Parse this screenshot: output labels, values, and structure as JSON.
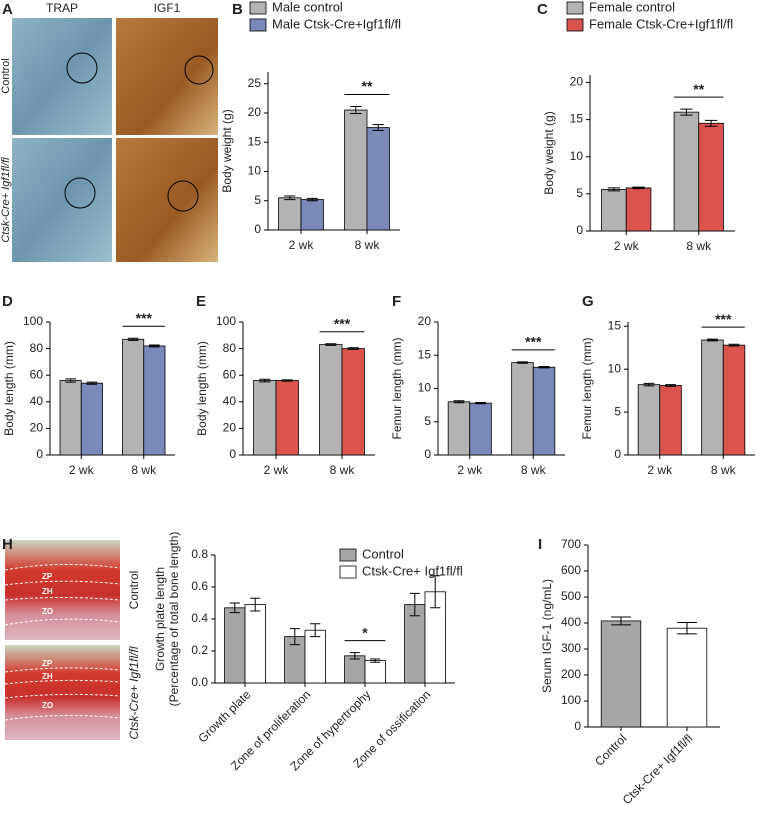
{
  "image_panels": [
    {
      "panel": "A",
      "column_labels": [
        "TRAP",
        "IGF1"
      ],
      "row_labels": [
        "Control",
        "Ctsk-Cre+ Igf1fl/fl"
      ]
    },
    {
      "panel": "H",
      "row_labels": [
        "Control",
        "Ctsk-Cre+ Igf1fl/fl"
      ],
      "zone_labels": [
        [
          "ZP",
          "ZH",
          "ZO"
        ],
        [
          "ZP",
          "ZH",
          "ZO"
        ]
      ]
    }
  ],
  "chart_data": [
    {
      "type": "bar",
      "panel": "B",
      "ylabel": [
        "Body weight (g)"
      ],
      "categories": [
        "2 wk",
        "8 wk"
      ],
      "series": [
        {
          "name": "Male control",
          "color": "#b3b3b3",
          "values": [
            5.5,
            20.5
          ],
          "errors": [
            0.3,
            0.6
          ]
        },
        {
          "name": "Male Ctsk-Cre+Igf1fl/fl",
          "color": "#7b89b8",
          "values": [
            5.2,
            17.5
          ],
          "errors": [
            0.2,
            0.5
          ]
        }
      ],
      "ylim": [
        0,
        27
      ],
      "yticks": [
        0,
        5,
        10,
        15,
        20,
        25
      ],
      "annotations": [
        {
          "text": "**",
          "x": "8 wk"
        }
      ]
    },
    {
      "type": "bar",
      "panel": "C",
      "ylabel": [
        "Body weight (g)"
      ],
      "categories": [
        "2 wk",
        "8 wk"
      ],
      "series": [
        {
          "name": "Female control",
          "color": "#b3b3b3",
          "values": [
            5.6,
            16.0
          ],
          "errors": [
            0.2,
            0.4
          ]
        },
        {
          "name": "Female Ctsk-Cre+Igf1fl/fl",
          "color": "#d9534f",
          "values": [
            5.8,
            14.5
          ],
          "errors": [
            0.1,
            0.4
          ]
        }
      ],
      "ylim": [
        0,
        21
      ],
      "yticks": [
        0,
        5,
        10,
        15,
        20
      ],
      "annotations": [
        {
          "text": "**",
          "x": "8 wk"
        }
      ]
    },
    {
      "type": "bar",
      "panel": "D",
      "ylabel": [
        "Body length (mm)"
      ],
      "categories": [
        "2 wk",
        "8 wk"
      ],
      "series": [
        {
          "color": "#b3b3b3",
          "values": [
            56,
            87
          ],
          "errors": [
            1.2,
            0.8
          ]
        },
        {
          "color": "#7b89b8",
          "values": [
            54,
            82
          ],
          "errors": [
            0.8,
            0.7
          ]
        }
      ],
      "ylim": [
        0,
        100
      ],
      "yticks": [
        0,
        20,
        40,
        60,
        80,
        100
      ],
      "annotations": [
        {
          "text": "***",
          "x": "8 wk"
        }
      ]
    },
    {
      "type": "bar",
      "panel": "E",
      "ylabel": [
        "Body length (mm)"
      ],
      "categories": [
        "2 wk",
        "8 wk"
      ],
      "series": [
        {
          "color": "#b3b3b3",
          "values": [
            56,
            83
          ],
          "errors": [
            1.0,
            0.6
          ]
        },
        {
          "color": "#d9534f",
          "values": [
            56,
            80
          ],
          "errors": [
            0.5,
            0.6
          ]
        }
      ],
      "ylim": [
        0,
        100
      ],
      "yticks": [
        0,
        20,
        40,
        60,
        80,
        100
      ],
      "annotations": [
        {
          "text": "***",
          "x": "8 wk"
        }
      ]
    },
    {
      "type": "bar",
      "panel": "F",
      "ylabel": [
        "Femur length (mm)"
      ],
      "categories": [
        "2 wk",
        "8 wk"
      ],
      "series": [
        {
          "color": "#b3b3b3",
          "values": [
            8.0,
            13.9
          ],
          "errors": [
            0.15,
            0.1
          ]
        },
        {
          "color": "#7b89b8",
          "values": [
            7.8,
            13.2
          ],
          "errors": [
            0.1,
            0.1
          ]
        }
      ],
      "ylim": [
        0,
        20
      ],
      "yticks": [
        0,
        5,
        10,
        15,
        20
      ],
      "annotations": [
        {
          "text": "***",
          "x": "8 wk"
        }
      ]
    },
    {
      "type": "bar",
      "panel": "G",
      "ylabel": [
        "Femur length (mm)"
      ],
      "categories": [
        "2 wk",
        "8 wk"
      ],
      "series": [
        {
          "color": "#b3b3b3",
          "values": [
            8.2,
            13.4
          ],
          "errors": [
            0.15,
            0.1
          ]
        },
        {
          "color": "#d9534f",
          "values": [
            8.1,
            12.8
          ],
          "errors": [
            0.1,
            0.1
          ]
        }
      ],
      "ylim": [
        0,
        15.5
      ],
      "yticks": [
        0,
        5,
        10,
        15
      ],
      "annotations": [
        {
          "text": "***",
          "x": "8 wk"
        }
      ]
    },
    {
      "type": "bar",
      "panel": "",
      "ylabel": [
        "Growth plate length",
        "(Percentage of total bone length)"
      ],
      "categories": [
        "Growth plate",
        "Zone of proliferation",
        "Zone of hypertrophy",
        "Zone of ossification"
      ],
      "series": [
        {
          "name": "Control",
          "color": "#a6a6a6",
          "values": [
            0.47,
            0.29,
            0.17,
            0.49
          ],
          "errors": [
            0.03,
            0.05,
            0.02,
            0.07
          ]
        },
        {
          "name": "Ctsk-Cre+ Igf1fl/fl",
          "color": "#ffffff",
          "values": [
            0.49,
            0.33,
            0.14,
            0.57
          ],
          "errors": [
            0.04,
            0.04,
            0.01,
            0.1
          ]
        }
      ],
      "ylim": [
        0,
        0.8
      ],
      "yticks": [
        {
          "value": 0,
          "label": "0.0"
        },
        0.2,
        0.4,
        0.6,
        0.8
      ],
      "annotations": [
        {
          "text": "*",
          "x": "Zone of hypertrophy"
        }
      ]
    },
    {
      "type": "bar",
      "panel": "I",
      "ylabel": [
        "Serum IGF-1 (ng/mL)"
      ],
      "categories": [
        "Control",
        "Ctsk-Cre+ Igf1fl/fl"
      ],
      "series": [
        {
          "colors": [
            "#a6a6a6",
            "#ffffff"
          ],
          "values": [
            408,
            380
          ],
          "errors": [
            15,
            22
          ]
        }
      ],
      "ylim": [
        0,
        700
      ],
      "yticks": [
        0,
        100,
        200,
        300,
        400,
        500,
        600,
        700
      ]
    }
  ]
}
